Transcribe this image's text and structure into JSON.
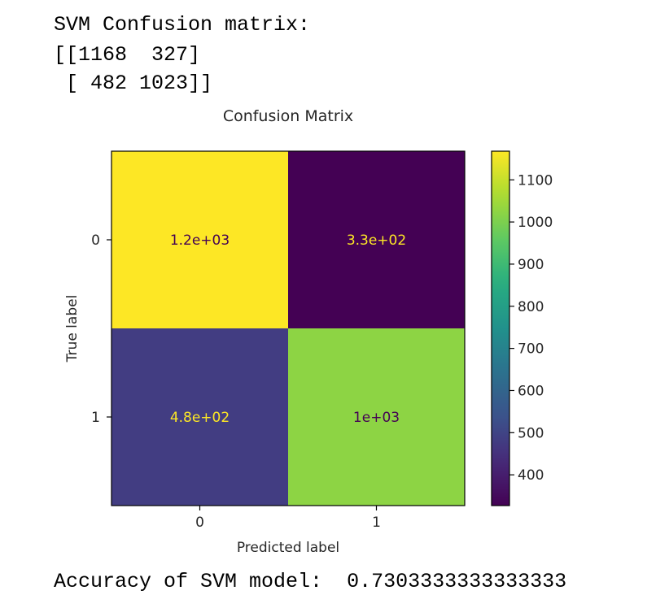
{
  "console": {
    "header": "SVM Confusion matrix:",
    "matrix_rows": [
      "[[1168  327]",
      " [ 482 1023]]"
    ],
    "accuracy_label": "Accuracy of SVM model:",
    "accuracy_value": "0.7303333333333333"
  },
  "chart_data": {
    "type": "heatmap",
    "title": "Confusion Matrix",
    "xlabel": "Predicted label",
    "ylabel": "True label",
    "x_categories": [
      "0",
      "1"
    ],
    "y_categories": [
      "0",
      "1"
    ],
    "values": [
      [
        1168,
        327
      ],
      [
        482,
        1023
      ]
    ],
    "cell_labels": [
      [
        "1.2e+03",
        "3.3e+02"
      ],
      [
        "4.8e+02",
        "1e+03"
      ]
    ],
    "colormap": "viridis",
    "colorbar": {
      "range": [
        327,
        1168
      ],
      "ticks": [
        400,
        500,
        600,
        700,
        800,
        900,
        1000,
        1100
      ],
      "tick_labels": [
        "400",
        "500",
        "600",
        "700",
        "800",
        "900",
        "1000",
        "1100"
      ]
    },
    "text_colors": {
      "on_dark": "#fde725",
      "on_light": "#440154"
    },
    "grid": false
  }
}
